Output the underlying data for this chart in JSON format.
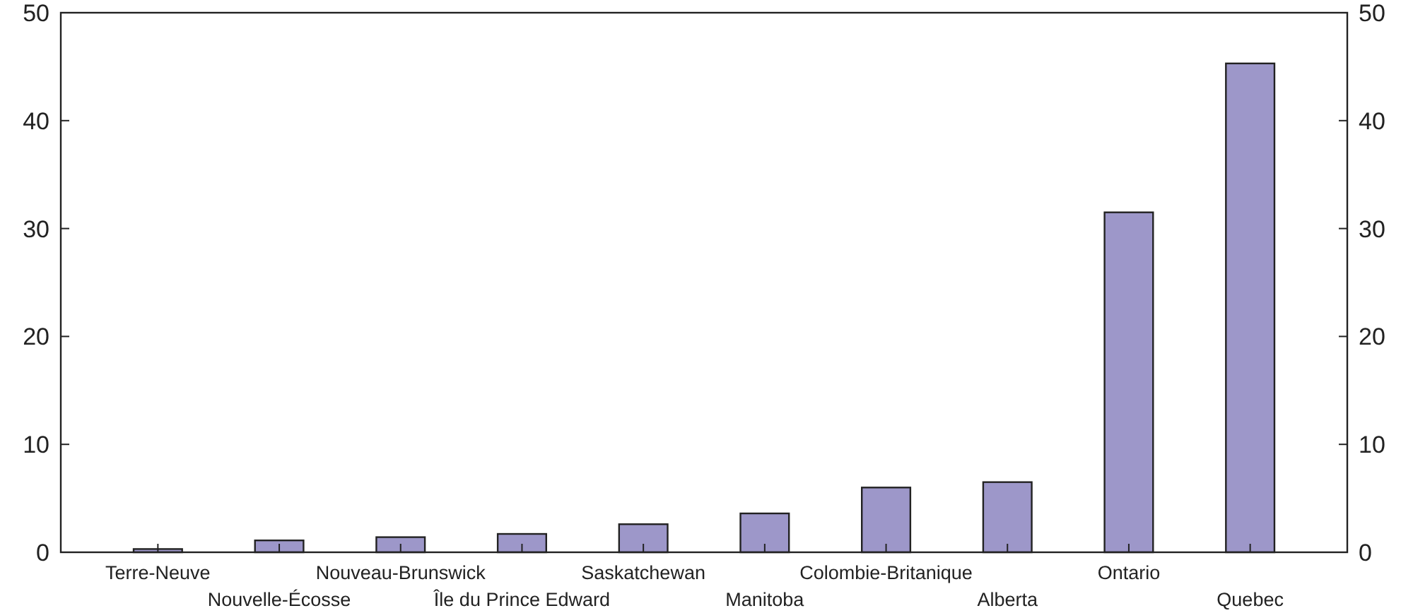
{
  "chart_data": {
    "type": "bar",
    "categories": [
      "Terre-Neuve",
      "Nouvelle-Écosse",
      "Nouveau-Brunswick",
      "Île du Prince Edward",
      "Saskatchewan",
      "Manitoba",
      "Colombie-Britanique",
      "Alberta",
      "Ontario",
      "Quebec"
    ],
    "values": [
      0.3,
      1.1,
      1.4,
      1.7,
      2.6,
      3.6,
      6.0,
      6.5,
      31.5,
      45.3
    ],
    "color": "#9d97c9",
    "ylim": [
      0,
      50
    ],
    "yticks": [
      0,
      10,
      20,
      30,
      40,
      50
    ],
    "y2lim": [
      0,
      50
    ],
    "y2ticks": [
      0,
      10,
      20,
      30,
      40,
      50
    ]
  }
}
